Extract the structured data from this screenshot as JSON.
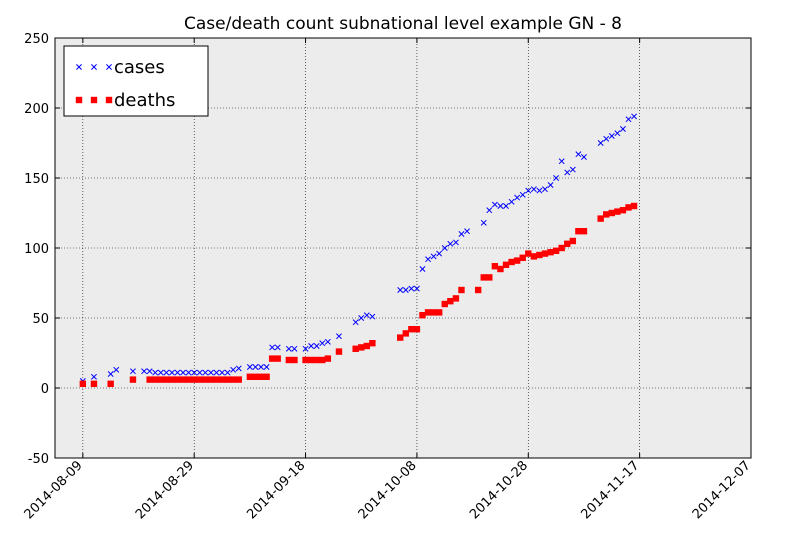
{
  "chart_data": {
    "type": "scatter",
    "title": "Case/death count subnational level example GN - 8",
    "xlabel": "",
    "ylabel": "",
    "xlim": [
      "2014-08-04",
      "2014-12-07"
    ],
    "ylim": [
      -50,
      250
    ],
    "x_ticks": [
      "2014-08-09",
      "2014-08-29",
      "2014-09-18",
      "2014-10-08",
      "2014-10-28",
      "2014-11-17",
      "2014-12-07"
    ],
    "y_ticks": [
      -50,
      0,
      50,
      100,
      150,
      200,
      250
    ],
    "grid": true,
    "legend": "top-left",
    "series": [
      {
        "name": "cases",
        "marker": "x",
        "color": "#0000ff",
        "points": [
          [
            "2014-08-09",
            5
          ],
          [
            "2014-08-11",
            8
          ],
          [
            "2014-08-14",
            10
          ],
          [
            "2014-08-15",
            13
          ],
          [
            "2014-08-18",
            12
          ],
          [
            "2014-08-20",
            12
          ],
          [
            "2014-08-21",
            12
          ],
          [
            "2014-08-22",
            11
          ],
          [
            "2014-08-23",
            11
          ],
          [
            "2014-08-24",
            11
          ],
          [
            "2014-08-25",
            11
          ],
          [
            "2014-08-26",
            11
          ],
          [
            "2014-08-27",
            11
          ],
          [
            "2014-08-28",
            11
          ],
          [
            "2014-08-29",
            11
          ],
          [
            "2014-08-30",
            11
          ],
          [
            "2014-08-31",
            11
          ],
          [
            "2014-09-01",
            11
          ],
          [
            "2014-09-02",
            11
          ],
          [
            "2014-09-03",
            11
          ],
          [
            "2014-09-04",
            11
          ],
          [
            "2014-09-05",
            13
          ],
          [
            "2014-09-06",
            14
          ],
          [
            "2014-09-08",
            15
          ],
          [
            "2014-09-09",
            15
          ],
          [
            "2014-09-10",
            15
          ],
          [
            "2014-09-11",
            15
          ],
          [
            "2014-09-12",
            29
          ],
          [
            "2014-09-13",
            29
          ],
          [
            "2014-09-15",
            28
          ],
          [
            "2014-09-16",
            28
          ],
          [
            "2014-09-18",
            28
          ],
          [
            "2014-09-19",
            30
          ],
          [
            "2014-09-20",
            30
          ],
          [
            "2014-09-21",
            32
          ],
          [
            "2014-09-22",
            33
          ],
          [
            "2014-09-24",
            37
          ],
          [
            "2014-09-27",
            47
          ],
          [
            "2014-09-28",
            50
          ],
          [
            "2014-09-29",
            52
          ],
          [
            "2014-09-30",
            51
          ],
          [
            "2014-10-05",
            70
          ],
          [
            "2014-10-06",
            70
          ],
          [
            "2014-10-07",
            71
          ],
          [
            "2014-10-08",
            71
          ],
          [
            "2014-10-09",
            85
          ],
          [
            "2014-10-10",
            92
          ],
          [
            "2014-10-11",
            94
          ],
          [
            "2014-10-12",
            96
          ],
          [
            "2014-10-13",
            100
          ],
          [
            "2014-10-14",
            103
          ],
          [
            "2014-10-15",
            104
          ],
          [
            "2014-10-16",
            110
          ],
          [
            "2014-10-17",
            112
          ],
          [
            "2014-10-20",
            118
          ],
          [
            "2014-10-21",
            127
          ],
          [
            "2014-10-22",
            131
          ],
          [
            "2014-10-23",
            130
          ],
          [
            "2014-10-24",
            130
          ],
          [
            "2014-10-25",
            133
          ],
          [
            "2014-10-26",
            136
          ],
          [
            "2014-10-27",
            138
          ],
          [
            "2014-10-28",
            141
          ],
          [
            "2014-10-29",
            142
          ],
          [
            "2014-10-30",
            141
          ],
          [
            "2014-10-31",
            142
          ],
          [
            "2014-11-01",
            145
          ],
          [
            "2014-11-02",
            150
          ],
          [
            "2014-11-03",
            162
          ],
          [
            "2014-11-04",
            154
          ],
          [
            "2014-11-05",
            156
          ],
          [
            "2014-11-06",
            167
          ],
          [
            "2014-11-07",
            165
          ],
          [
            "2014-11-10",
            175
          ],
          [
            "2014-11-11",
            178
          ],
          [
            "2014-11-12",
            180
          ],
          [
            "2014-11-13",
            182
          ],
          [
            "2014-11-14",
            185
          ],
          [
            "2014-11-15",
            192
          ],
          [
            "2014-11-16",
            194
          ]
        ]
      },
      {
        "name": "deaths",
        "marker": "square",
        "color": "#ff0000",
        "points": [
          [
            "2014-08-09",
            3
          ],
          [
            "2014-08-11",
            3
          ],
          [
            "2014-08-14",
            3
          ],
          [
            "2014-08-18",
            6
          ],
          [
            "2014-08-21",
            6
          ],
          [
            "2014-08-22",
            6
          ],
          [
            "2014-08-23",
            6
          ],
          [
            "2014-08-24",
            6
          ],
          [
            "2014-08-25",
            6
          ],
          [
            "2014-08-26",
            6
          ],
          [
            "2014-08-27",
            6
          ],
          [
            "2014-08-28",
            6
          ],
          [
            "2014-08-29",
            6
          ],
          [
            "2014-08-30",
            6
          ],
          [
            "2014-08-31",
            6
          ],
          [
            "2014-09-01",
            6
          ],
          [
            "2014-09-02",
            6
          ],
          [
            "2014-09-03",
            6
          ],
          [
            "2014-09-04",
            6
          ],
          [
            "2014-09-05",
            6
          ],
          [
            "2014-09-06",
            6
          ],
          [
            "2014-09-08",
            8
          ],
          [
            "2014-09-09",
            8
          ],
          [
            "2014-09-10",
            8
          ],
          [
            "2014-09-11",
            8
          ],
          [
            "2014-09-12",
            21
          ],
          [
            "2014-09-13",
            21
          ],
          [
            "2014-09-15",
            20
          ],
          [
            "2014-09-16",
            20
          ],
          [
            "2014-09-18",
            20
          ],
          [
            "2014-09-19",
            20
          ],
          [
            "2014-09-20",
            20
          ],
          [
            "2014-09-21",
            20
          ],
          [
            "2014-09-22",
            21
          ],
          [
            "2014-09-24",
            26
          ],
          [
            "2014-09-27",
            28
          ],
          [
            "2014-09-28",
            29
          ],
          [
            "2014-09-29",
            30
          ],
          [
            "2014-09-30",
            32
          ],
          [
            "2014-10-05",
            36
          ],
          [
            "2014-10-06",
            39
          ],
          [
            "2014-10-07",
            42
          ],
          [
            "2014-10-08",
            42
          ],
          [
            "2014-10-09",
            52
          ],
          [
            "2014-10-10",
            54
          ],
          [
            "2014-10-11",
            54
          ],
          [
            "2014-10-12",
            54
          ],
          [
            "2014-10-13",
            60
          ],
          [
            "2014-10-14",
            62
          ],
          [
            "2014-10-15",
            64
          ],
          [
            "2014-10-16",
            70
          ],
          [
            "2014-10-19",
            70
          ],
          [
            "2014-10-20",
            79
          ],
          [
            "2014-10-21",
            79
          ],
          [
            "2014-10-22",
            87
          ],
          [
            "2014-10-23",
            85
          ],
          [
            "2014-10-24",
            88
          ],
          [
            "2014-10-25",
            90
          ],
          [
            "2014-10-26",
            91
          ],
          [
            "2014-10-27",
            93
          ],
          [
            "2014-10-28",
            96
          ],
          [
            "2014-10-29",
            94
          ],
          [
            "2014-10-30",
            95
          ],
          [
            "2014-10-31",
            96
          ],
          [
            "2014-11-01",
            97
          ],
          [
            "2014-11-02",
            98
          ],
          [
            "2014-11-03",
            100
          ],
          [
            "2014-11-04",
            103
          ],
          [
            "2014-11-05",
            105
          ],
          [
            "2014-11-06",
            112
          ],
          [
            "2014-11-07",
            112
          ],
          [
            "2014-11-10",
            121
          ],
          [
            "2014-11-11",
            124
          ],
          [
            "2014-11-12",
            125
          ],
          [
            "2014-11-13",
            126
          ],
          [
            "2014-11-14",
            127
          ],
          [
            "2014-11-15",
            129
          ],
          [
            "2014-11-16",
            130
          ]
        ]
      }
    ]
  }
}
